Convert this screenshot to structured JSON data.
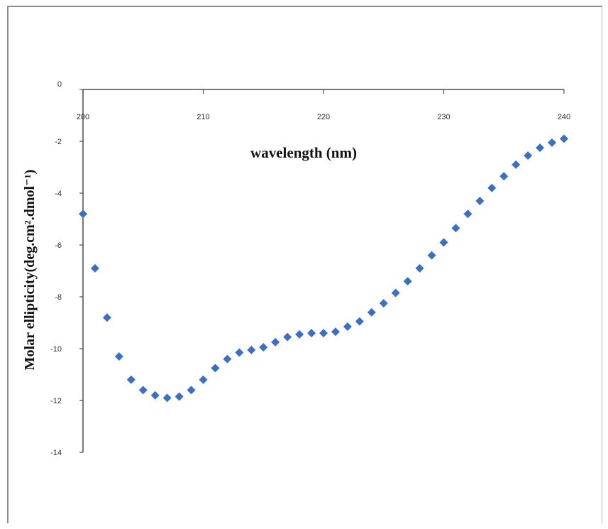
{
  "chart_data": {
    "type": "scatter",
    "title": "",
    "xlabel": "wavelength (nm)",
    "ylabel": "Molar ellipticity(deg.cm².dmol⁻¹)",
    "xlim": [
      200,
      240
    ],
    "ylim": [
      -14,
      0
    ],
    "xticks": [
      200,
      210,
      220,
      230,
      240
    ],
    "yticks": [
      0,
      -2,
      -4,
      -6,
      -8,
      -10,
      -12,
      -14
    ],
    "grid": false,
    "legend": "none",
    "marker_color": "#3a6fc4",
    "series": [
      {
        "x": [
          200,
          201,
          202,
          203,
          204,
          205,
          206,
          207,
          208,
          209,
          210,
          211,
          212,
          213,
          214,
          215,
          216,
          217,
          218,
          219,
          220,
          221,
          222,
          223,
          224,
          225,
          226,
          227,
          228,
          229,
          230,
          231,
          232,
          233,
          234,
          235,
          236,
          237,
          238,
          239,
          240
        ],
        "y": [
          -4.8,
          -6.9,
          -8.8,
          -10.3,
          -11.2,
          -11.6,
          -11.8,
          -11.9,
          -11.85,
          -11.6,
          -11.2,
          -10.75,
          -10.4,
          -10.15,
          -10.05,
          -9.95,
          -9.75,
          -9.55,
          -9.45,
          -9.4,
          -9.4,
          -9.35,
          -9.15,
          -8.95,
          -8.6,
          -8.25,
          -7.85,
          -7.4,
          -6.9,
          -6.4,
          -5.9,
          -5.35,
          -4.8,
          -4.3,
          -3.8,
          -3.35,
          -2.9,
          -2.55,
          -2.25,
          -2.05,
          -1.9
        ]
      }
    ]
  }
}
